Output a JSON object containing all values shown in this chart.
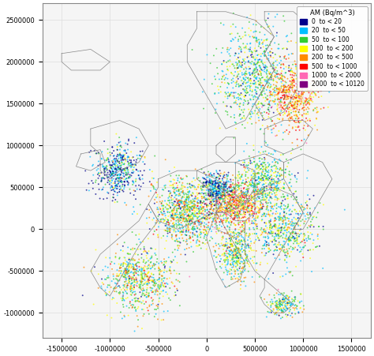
{
  "title": "",
  "xlim": [
    -1700000,
    1700000
  ],
  "ylim": [
    -1300000,
    2700000
  ],
  "xticks": [
    -1500000,
    -1000000,
    -500000,
    0,
    500000,
    1000000,
    1500000
  ],
  "yticks": [
    -1000000,
    -500000,
    0,
    500000,
    1000000,
    1500000,
    2000000,
    2500000
  ],
  "legend_title": "AM (Bq/m^3)",
  "legend_entries": [
    {
      "label": "0  to < 20",
      "color": "#00008B"
    },
    {
      "label": "20  to < 50",
      "color": "#00BFFF"
    },
    {
      "label": "50  to < 100",
      "color": "#32CD32"
    },
    {
      "label": "100  to < 200",
      "color": "#FFFF00"
    },
    {
      "label": "200  to < 500",
      "color": "#FF8C00"
    },
    {
      "label": "500  to < 1000",
      "color": "#FF0000"
    },
    {
      "label": "1000  to < 2000",
      "color": "#FF69B4"
    },
    {
      "label": "2000  to < 10120",
      "color": "#800080"
    }
  ],
  "background_color": "#ffffff",
  "map_background": "#f0f0f0",
  "grid_color": "#cccccc",
  "border_color": "#888888",
  "figure_bg": "#ffffff"
}
